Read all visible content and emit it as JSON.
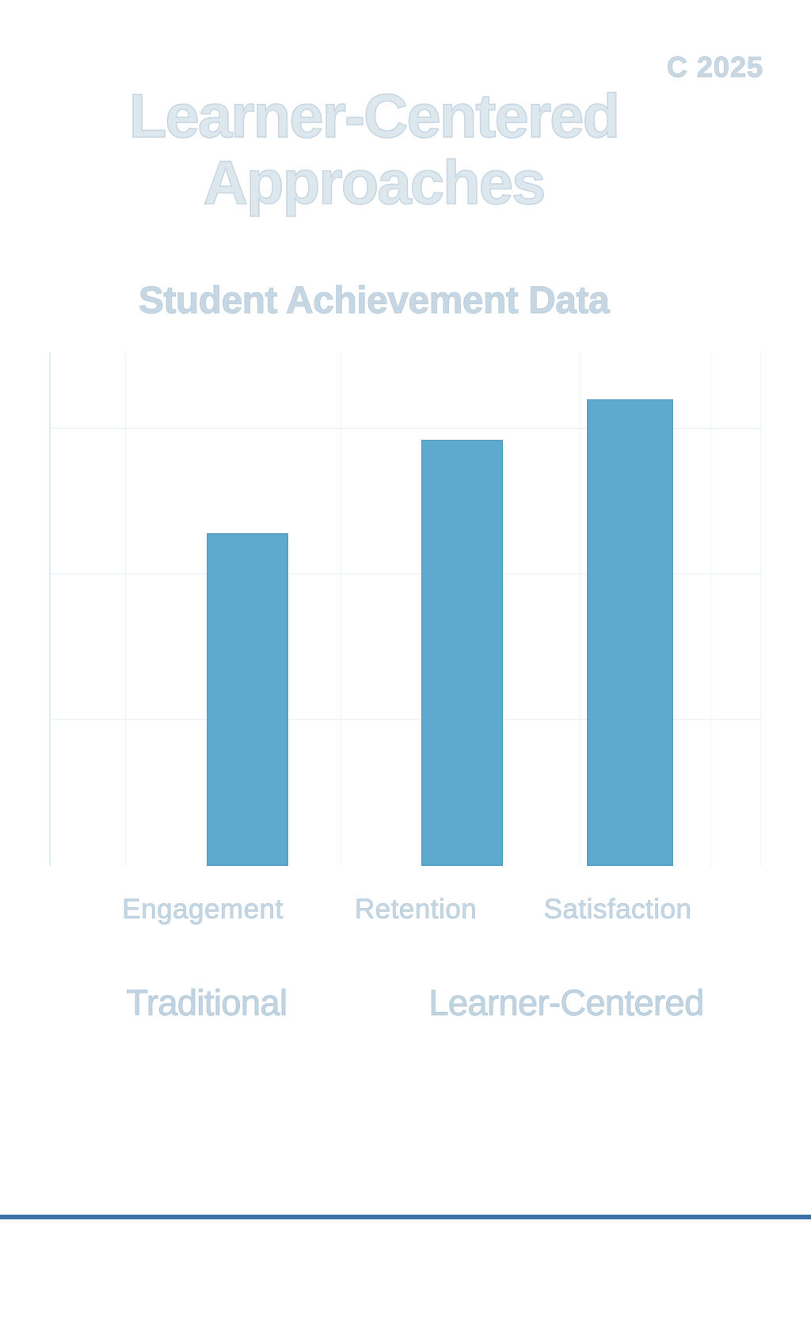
{
  "header": {
    "copyright": "C 2025",
    "title_line1": "Learner-Centered",
    "title_line2": "Approaches",
    "subtitle": "Student Achievement Data"
  },
  "chart_data": {
    "type": "bar",
    "title": "Student Achievement Data",
    "categories": [
      "Engagement",
      "Retention",
      "Satisfaction"
    ],
    "values": [
      57,
      73,
      80
    ],
    "xlabel": "",
    "ylabel": "",
    "ylim": [
      0,
      88
    ],
    "gridline_values": [
      25,
      50,
      75
    ],
    "grid": "faint, no tick labels",
    "legend_position": "below",
    "bar_color": "#5EA9CE"
  },
  "legend": {
    "items": [
      {
        "label": "Traditional"
      },
      {
        "label": "Learner-Centered"
      }
    ]
  },
  "colors": {
    "background": "#FFFFFF",
    "bar": "#5EA9CE",
    "title_text": "#DDE7EE",
    "pale_text": "#C5D6E3",
    "divider_line": "#3B72A8"
  }
}
